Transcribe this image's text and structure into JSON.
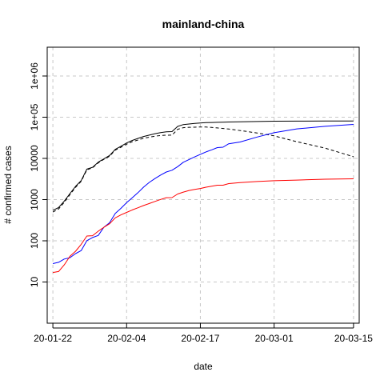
{
  "chart_data": {
    "type": "line",
    "title": "mainland-china",
    "xlabel": "date",
    "ylabel": "# confirmed cases",
    "x_tick_labels": [
      "20-01-22",
      "20-02-04",
      "20-02-17",
      "20-03-01",
      "20-03-15"
    ],
    "y_tick_labels": [
      "10",
      "100",
      "1000",
      "10000",
      "1e+05",
      "1e+06"
    ],
    "y_scale": "log",
    "xlim": [
      "2020-01-21",
      "2020-03-16"
    ],
    "ylim": [
      1,
      5000000
    ],
    "grid": true,
    "legend": "none",
    "series": [
      {
        "color": "#000000",
        "style": "solid",
        "points": [
          [
            "2020-01-22",
            550
          ],
          [
            "2020-01-23",
            640
          ],
          [
            "2020-01-24",
            920
          ],
          [
            "2020-01-25",
            1400
          ],
          [
            "2020-01-26",
            2100
          ],
          [
            "2020-01-27",
            2900
          ],
          [
            "2020-01-28",
            5500
          ],
          [
            "2020-01-29",
            6100
          ],
          [
            "2020-01-30",
            8100
          ],
          [
            "2020-01-31",
            9800
          ],
          [
            "2020-02-01",
            11800
          ],
          [
            "2020-02-02",
            16600
          ],
          [
            "2020-02-03",
            19700
          ],
          [
            "2020-02-04",
            23700
          ],
          [
            "2020-02-05",
            27400
          ],
          [
            "2020-02-06",
            30600
          ],
          [
            "2020-02-07",
            34100
          ],
          [
            "2020-02-08",
            36800
          ],
          [
            "2020-02-09",
            39800
          ],
          [
            "2020-02-10",
            42300
          ],
          [
            "2020-02-11",
            44300
          ],
          [
            "2020-02-12",
            44700
          ],
          [
            "2020-02-13",
            59900
          ],
          [
            "2020-02-14",
            66300
          ],
          [
            "2020-02-15",
            68300
          ],
          [
            "2020-02-16",
            70500
          ],
          [
            "2020-02-17",
            72400
          ],
          [
            "2020-02-18",
            74100
          ],
          [
            "2020-02-19",
            74600
          ],
          [
            "2020-02-20",
            75100
          ],
          [
            "2020-02-21",
            75900
          ],
          [
            "2020-02-22",
            76400
          ],
          [
            "2020-02-24",
            77200
          ],
          [
            "2020-02-27",
            78500
          ],
          [
            "2020-03-01",
            79900
          ],
          [
            "2020-03-05",
            80400
          ],
          [
            "2020-03-10",
            80800
          ],
          [
            "2020-03-15",
            80900
          ]
        ]
      },
      {
        "color": "#000000",
        "style": "dashed",
        "points": [
          [
            "2020-01-22",
            500
          ],
          [
            "2020-01-23",
            590
          ],
          [
            "2020-01-24",
            860
          ],
          [
            "2020-01-25",
            1320
          ],
          [
            "2020-01-26",
            1990
          ],
          [
            "2020-01-27",
            2780
          ],
          [
            "2020-01-28",
            5300
          ],
          [
            "2020-01-29",
            5900
          ],
          [
            "2020-01-30",
            7800
          ],
          [
            "2020-01-31",
            9500
          ],
          [
            "2020-02-01",
            11300
          ],
          [
            "2020-02-02",
            15900
          ],
          [
            "2020-02-03",
            18700
          ],
          [
            "2020-02-04",
            22200
          ],
          [
            "2020-02-05",
            25400
          ],
          [
            "2020-02-06",
            28000
          ],
          [
            "2020-02-07",
            30800
          ],
          [
            "2020-02-08",
            32700
          ],
          [
            "2020-02-09",
            34700
          ],
          [
            "2020-02-10",
            35900
          ],
          [
            "2020-02-11",
            36600
          ],
          [
            "2020-02-12",
            36700
          ],
          [
            "2020-02-13",
            51000
          ],
          [
            "2020-02-14",
            55700
          ],
          [
            "2020-02-15",
            56900
          ],
          [
            "2020-02-16",
            57300
          ],
          [
            "2020-02-17",
            57900
          ],
          [
            "2020-02-18",
            57800
          ],
          [
            "2020-02-19",
            56300
          ],
          [
            "2020-02-20",
            54900
          ],
          [
            "2020-02-22",
            51600
          ],
          [
            "2020-02-25",
            45600
          ],
          [
            "2020-02-28",
            39300
          ],
          [
            "2020-03-01",
            35300
          ],
          [
            "2020-03-05",
            25400
          ],
          [
            "2020-03-10",
            17700
          ],
          [
            "2020-03-15",
            11000
          ]
        ]
      },
      {
        "color": "#0000ff",
        "style": "solid",
        "points": [
          [
            "2020-01-22",
            28
          ],
          [
            "2020-01-23",
            30
          ],
          [
            "2020-01-24",
            36
          ],
          [
            "2020-01-25",
            39
          ],
          [
            "2020-01-26",
            49
          ],
          [
            "2020-01-27",
            58
          ],
          [
            "2020-01-28",
            101
          ],
          [
            "2020-01-29",
            120
          ],
          [
            "2020-01-30",
            135
          ],
          [
            "2020-01-31",
            214
          ],
          [
            "2020-02-01",
            275
          ],
          [
            "2020-02-02",
            463
          ],
          [
            "2020-02-03",
            614
          ],
          [
            "2020-02-04",
            843
          ],
          [
            "2020-02-05",
            1115
          ],
          [
            "2020-02-06",
            1476
          ],
          [
            "2020-02-07",
            2011
          ],
          [
            "2020-02-08",
            2616
          ],
          [
            "2020-02-09",
            3244
          ],
          [
            "2020-02-10",
            3946
          ],
          [
            "2020-02-11",
            4683
          ],
          [
            "2020-02-12",
            5150
          ],
          [
            "2020-02-13",
            6295
          ],
          [
            "2020-02-14",
            8058
          ],
          [
            "2020-02-15",
            9395
          ],
          [
            "2020-02-16",
            10865
          ],
          [
            "2020-02-17",
            12561
          ],
          [
            "2020-02-18",
            14376
          ],
          [
            "2020-02-19",
            16155
          ],
          [
            "2020-02-20",
            18264
          ],
          [
            "2020-02-21",
            18700
          ],
          [
            "2020-02-22",
            22699
          ],
          [
            "2020-02-24",
            25000
          ],
          [
            "2020-02-27",
            33000
          ],
          [
            "2020-03-01",
            42000
          ],
          [
            "2020-03-05",
            52000
          ],
          [
            "2020-03-10",
            60000
          ],
          [
            "2020-03-15",
            67000
          ]
        ]
      },
      {
        "color": "#ff0000",
        "style": "solid",
        "points": [
          [
            "2020-01-22",
            17
          ],
          [
            "2020-01-23",
            18
          ],
          [
            "2020-01-24",
            26
          ],
          [
            "2020-01-25",
            42
          ],
          [
            "2020-01-26",
            56
          ],
          [
            "2020-01-27",
            82
          ],
          [
            "2020-01-28",
            131
          ],
          [
            "2020-01-29",
            133
          ],
          [
            "2020-01-30",
            171
          ],
          [
            "2020-01-31",
            213
          ],
          [
            "2020-02-01",
            259
          ],
          [
            "2020-02-02",
            361
          ],
          [
            "2020-02-03",
            425
          ],
          [
            "2020-02-04",
            490
          ],
          [
            "2020-02-05",
            562
          ],
          [
            "2020-02-06",
            633
          ],
          [
            "2020-02-07",
            718
          ],
          [
            "2020-02-08",
            805
          ],
          [
            "2020-02-09",
            904
          ],
          [
            "2020-02-10",
            1011
          ],
          [
            "2020-02-11",
            1111
          ],
          [
            "2020-02-12",
            1116
          ],
          [
            "2020-02-13",
            1368
          ],
          [
            "2020-02-14",
            1520
          ],
          [
            "2020-02-15",
            1662
          ],
          [
            "2020-02-16",
            1765
          ],
          [
            "2020-02-17",
            1863
          ],
          [
            "2020-02-18",
            2002
          ],
          [
            "2020-02-19",
            2114
          ],
          [
            "2020-02-20",
            2236
          ],
          [
            "2020-02-21",
            2236
          ],
          [
            "2020-02-22",
            2442
          ],
          [
            "2020-02-24",
            2592
          ],
          [
            "2020-02-27",
            2744
          ],
          [
            "2020-03-01",
            2870
          ],
          [
            "2020-03-05",
            2981
          ],
          [
            "2020-03-10",
            3120
          ],
          [
            "2020-03-15",
            3199
          ]
        ]
      }
    ]
  }
}
